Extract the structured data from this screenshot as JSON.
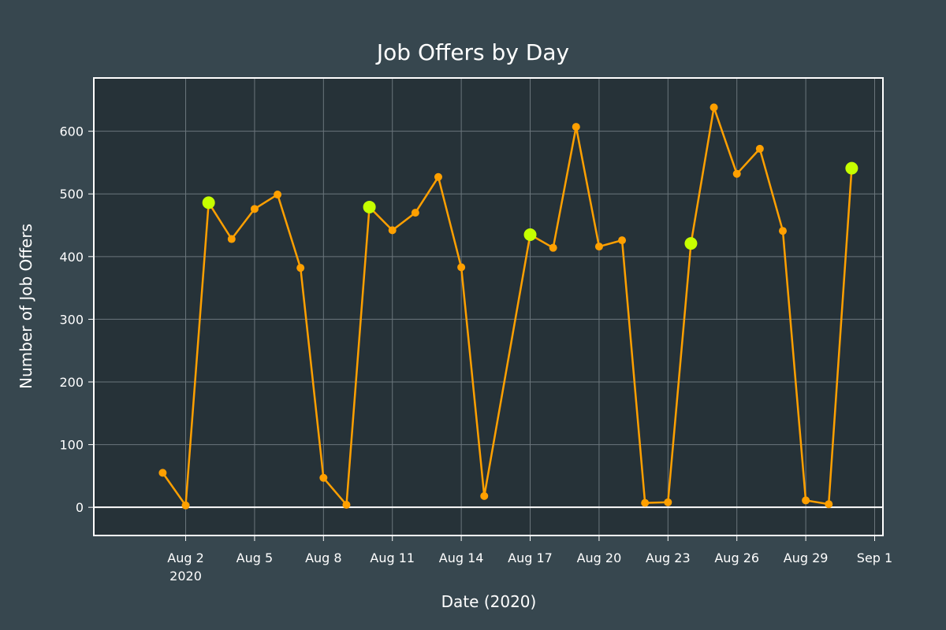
{
  "chart_data": {
    "type": "line",
    "title": "Job Offers by Day",
    "xlabel": "Date (2020)",
    "ylabel": "Number of Job Offers",
    "x_range": [
      "2020-07-29",
      "2020-09-01"
    ],
    "ylim": [
      -45,
      685
    ],
    "grid": true,
    "x_ticks": [
      {
        "date": "2020-08-02",
        "label": "Aug 2",
        "sublabel": "2020"
      },
      {
        "date": "2020-08-05",
        "label": "Aug 5"
      },
      {
        "date": "2020-08-08",
        "label": "Aug 8"
      },
      {
        "date": "2020-08-11",
        "label": "Aug 11"
      },
      {
        "date": "2020-08-14",
        "label": "Aug 14"
      },
      {
        "date": "2020-08-17",
        "label": "Aug 17"
      },
      {
        "date": "2020-08-20",
        "label": "Aug 20"
      },
      {
        "date": "2020-08-23",
        "label": "Aug 23"
      },
      {
        "date": "2020-08-26",
        "label": "Aug 26"
      },
      {
        "date": "2020-08-29",
        "label": "Aug 29"
      },
      {
        "date": "2020-09-01",
        "label": "Sep 1"
      }
    ],
    "y_ticks": [
      0,
      100,
      200,
      300,
      400,
      500,
      600
    ],
    "series": [
      {
        "line_color": "#ffa000",
        "marker_color": "#ffa000",
        "highlight_color": "#c6ff00",
        "points": [
          {
            "x": "2020-08-01",
            "y": 55
          },
          {
            "x": "2020-08-02",
            "y": 3
          },
          {
            "x": "2020-08-03",
            "y": 486,
            "highlight": true
          },
          {
            "x": "2020-08-04",
            "y": 428
          },
          {
            "x": "2020-08-05",
            "y": 476
          },
          {
            "x": "2020-08-06",
            "y": 499
          },
          {
            "x": "2020-08-07",
            "y": 382
          },
          {
            "x": "2020-08-08",
            "y": 47
          },
          {
            "x": "2020-08-09",
            "y": 4
          },
          {
            "x": "2020-08-10",
            "y": 479,
            "highlight": true
          },
          {
            "x": "2020-08-11",
            "y": 442
          },
          {
            "x": "2020-08-12",
            "y": 470
          },
          {
            "x": "2020-08-13",
            "y": 527
          },
          {
            "x": "2020-08-14",
            "y": 383
          },
          {
            "x": "2020-08-15",
            "y": 18
          },
          {
            "x": "2020-08-17",
            "y": 435,
            "highlight": true
          },
          {
            "x": "2020-08-18",
            "y": 414
          },
          {
            "x": "2020-08-19",
            "y": 607
          },
          {
            "x": "2020-08-20",
            "y": 416
          },
          {
            "x": "2020-08-21",
            "y": 426
          },
          {
            "x": "2020-08-22",
            "y": 7
          },
          {
            "x": "2020-08-23",
            "y": 8
          },
          {
            "x": "2020-08-24",
            "y": 421,
            "highlight": true
          },
          {
            "x": "2020-08-25",
            "y": 638
          },
          {
            "x": "2020-08-26",
            "y": 532
          },
          {
            "x": "2020-08-27",
            "y": 572
          },
          {
            "x": "2020-08-28",
            "y": 441
          },
          {
            "x": "2020-08-29",
            "y": 11
          },
          {
            "x": "2020-08-30",
            "y": 5
          },
          {
            "x": "2020-08-31",
            "y": 541,
            "highlight": true
          }
        ]
      }
    ]
  },
  "colors": {
    "page_background": "#37474f",
    "plot_background": "#263238",
    "grid": "#6b767c",
    "zero_line": "#ffffff",
    "plot_border": "#ffffff",
    "text": "#ffffff"
  }
}
